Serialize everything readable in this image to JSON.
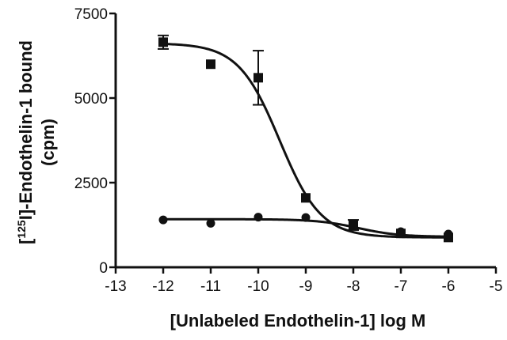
{
  "chart_data": {
    "type": "scatter",
    "title": "",
    "xlabel": "[Unlabeled Endothelin-1] log M",
    "ylabel_sup": "125",
    "ylabel_line1_prefix": "[",
    "ylabel_line1_suffix": "I]-Endothelin-1 bound",
    "ylabel_line2": "(cpm)",
    "xlim": [
      -13,
      -5
    ],
    "ylim": [
      0,
      7500
    ],
    "x_ticks": [
      -13,
      -12,
      -11,
      -10,
      -9,
      -8,
      -7,
      -6,
      -5
    ],
    "x_tick_labels": [
      "-13",
      "-12",
      "-11",
      "-10",
      "-9",
      "-8",
      "-7",
      "-6",
      "-5"
    ],
    "y_ticks": [
      0,
      2500,
      5000,
      7500
    ],
    "y_tick_labels": [
      "0",
      "2500",
      "5000",
      "7500"
    ],
    "grid": false,
    "series": [
      {
        "marker": "square",
        "x": [
          -12,
          -11,
          -10,
          -9,
          -8,
          -7,
          -6
        ],
        "y": [
          6650,
          6000,
          5600,
          2050,
          1250,
          1000,
          880
        ],
        "err": [
          200,
          0,
          800,
          0,
          150,
          0,
          0
        ],
        "fit": {
          "bottom": 880,
          "top": 6620,
          "logIC50": -9.55,
          "hill": -1.0
        }
      },
      {
        "marker": "circle",
        "x": [
          -12,
          -11,
          -10,
          -9,
          -7,
          -6
        ],
        "y": [
          1400,
          1300,
          1480,
          1470,
          1050,
          980
        ],
        "err": [
          0,
          0,
          0,
          0,
          0,
          0
        ],
        "fit": {
          "bottom": 900,
          "top": 1420,
          "logIC50": -7.9,
          "hill": -1.0
        }
      }
    ]
  }
}
